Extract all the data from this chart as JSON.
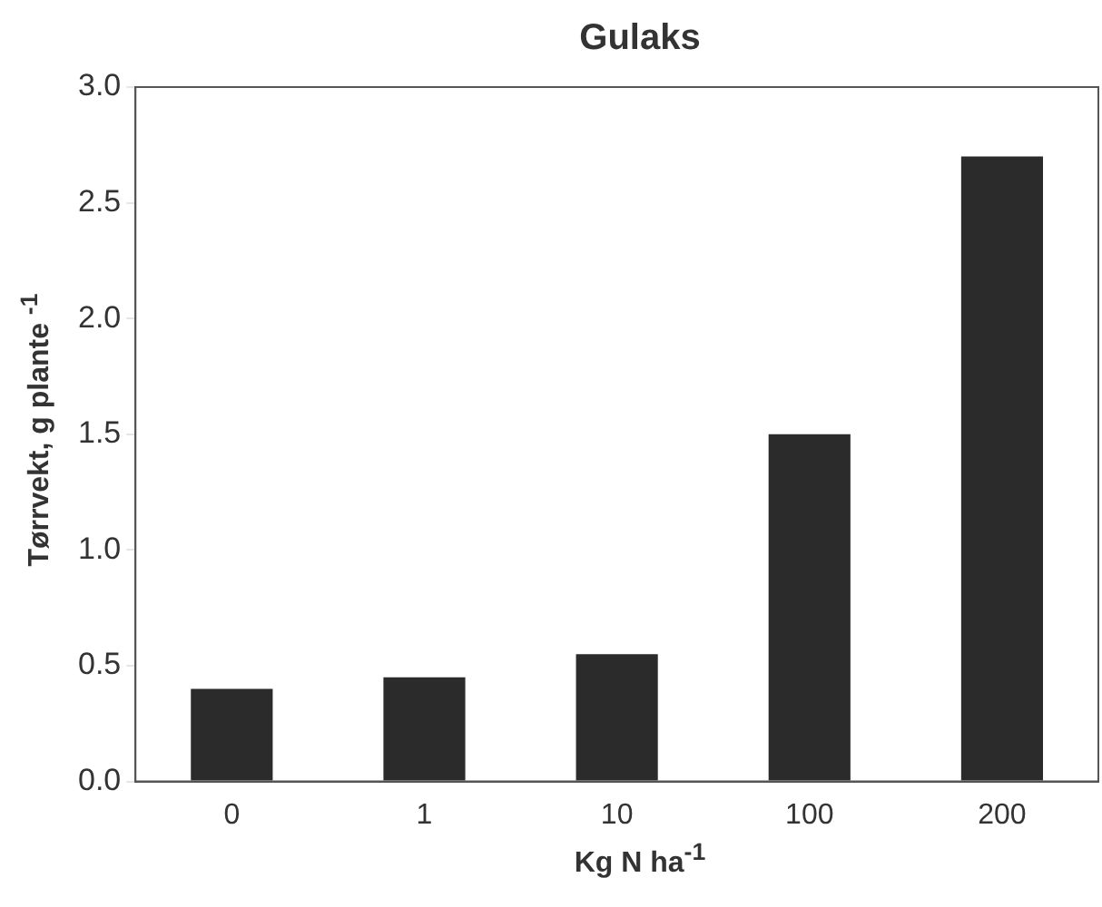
{
  "chart_data": {
    "type": "bar",
    "title": "Gulaks",
    "xlabel": "Kg N ha$^{-1}$",
    "ylabel": "Tørrvekt, g plante $^{-1}$",
    "categories": [
      "0",
      "1",
      "10",
      "100",
      "200"
    ],
    "values": [
      0.4,
      0.45,
      0.55,
      1.5,
      2.7
    ],
    "color": "#2b2b2b",
    "ylim": [
      0,
      3
    ],
    "yticks": [
      {
        "value": 0,
        "label": "0.0"
      },
      {
        "value": 0.5,
        "label": "0.5"
      },
      {
        "value": 1,
        "label": "1.0"
      },
      {
        "value": 1.5,
        "label": "1.5"
      },
      {
        "value": 2,
        "label": "2.0"
      },
      {
        "value": 2.5,
        "label": "2.5"
      },
      {
        "value": 3,
        "label": "3.0"
      }
    ],
    "grid": false
  }
}
